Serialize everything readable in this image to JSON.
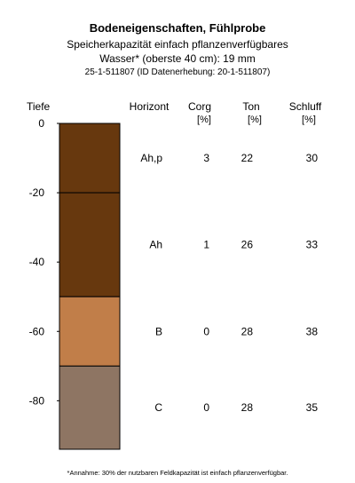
{
  "header": {
    "title": "Bodeneigenschaften, Fühlprobe",
    "subtitle_line1": "Speicherkapazität einfach pflanzenverfügbares",
    "subtitle_line2": "Wasser* (oberste 40 cm): 19 mm",
    "subtitle_line3": "25-1-511807 (ID Datenerhebung: 20-1-511807)"
  },
  "footnote": "*Annahme: 30% der nutzbaren Feldkapazität ist einfach pflanzenverfügbar.",
  "chart_data": {
    "type": "table",
    "ylabel": "Tiefe",
    "ylim": [
      0,
      -94
    ],
    "yticks": [
      "0",
      "-20",
      "-40",
      "-60",
      "-80"
    ],
    "ytick_values": [
      0,
      -20,
      -40,
      -60,
      -80
    ],
    "columns": [
      {
        "key": "horizon",
        "label": "Horizont",
        "unit": ""
      },
      {
        "key": "corg",
        "label": "Corg",
        "unit": "[%]"
      },
      {
        "key": "ton",
        "label": "Ton",
        "unit": "[%]"
      },
      {
        "key": "schluff",
        "label": "Schluff",
        "unit": "[%]"
      }
    ],
    "horizons": [
      {
        "horizon": "Ah,p",
        "top": 0,
        "bottom": -20,
        "corg": "3",
        "ton": "22",
        "schluff": "30",
        "color": "#67380e"
      },
      {
        "horizon": "Ah",
        "top": -20,
        "bottom": -50,
        "corg": "1",
        "ton": "26",
        "schluff": "33",
        "color": "#67380e"
      },
      {
        "horizon": "B",
        "top": -50,
        "bottom": -70,
        "corg": "0",
        "ton": "28",
        "schluff": "38",
        "color": "#c17e49"
      },
      {
        "horizon": "C",
        "top": -70,
        "bottom": -94,
        "corg": "0",
        "ton": "28",
        "schluff": "35",
        "color": "#8e7563"
      }
    ]
  }
}
